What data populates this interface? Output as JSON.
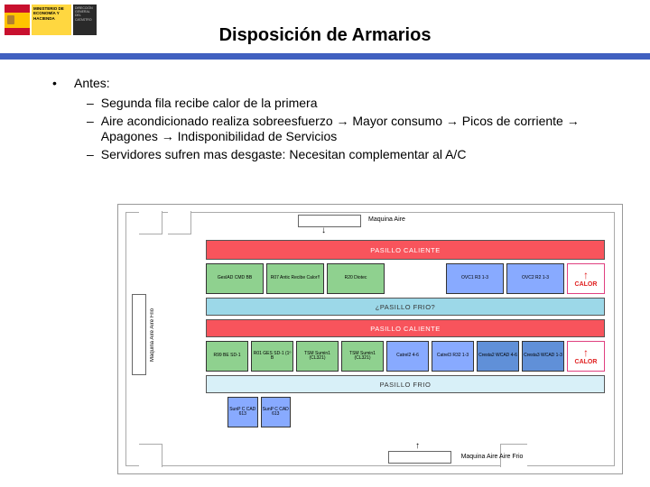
{
  "colors": {
    "flag_red": "#c8102e",
    "flag_yellow": "#ffc400",
    "crest": "#b08030",
    "min_bg": "#ffd740",
    "dark_bg": "#2a2a2a",
    "title_rule": "#4060c0",
    "hot": "#f8545c",
    "hot_text": "#ffffff",
    "cold": "#9cd8e8",
    "frio": "#d8f0f8",
    "rack_green": "#8fd18f",
    "rack_blue": "#88aaff",
    "rack_blue2": "#6090d8",
    "calor_border": "#e04080",
    "calor_red": "#e02020",
    "room_border": "#aaaaaa"
  },
  "header": {
    "min_text": "MINISTERIO DE ECONOMÍA Y HACIENDA",
    "dark_text": "DIRECCIÓN GENERAL DEL CATASTRO"
  },
  "title": "Disposición de Armarios",
  "bullet": {
    "marker": "•",
    "label": "Antes:"
  },
  "subs": {
    "m": "–",
    "s1": "Segunda fila recibe calor de la primera",
    "s2": "Aire acondicionado realiza sobreesfuerzo → Mayor consumo → Picos de corriente → Apagones → Indisponibilidad de Servicios",
    "s3": "Servidores sufren mas desgaste: Necesitan complementar al A/C"
  },
  "diagram": {
    "top_ac": "Maquina Aire",
    "pasillo_caliente": "PASILLO CALIENTE",
    "pasillo_frio_q": "¿PASILLO FRIO?",
    "pasillo_frio": "PASILLO FRIO",
    "calor": "CALOR",
    "calor_arrow": "↑",
    "bottom_ac": "Maquina Aire Aire Frio",
    "left_ac": "Maquina Aire Aire Frio",
    "flow_down": "↓",
    "flow_up": "↑",
    "racks_row1": [
      {
        "t": "GesIAD\nCMD\nBB",
        "c": "rack_green"
      },
      {
        "t": "R07\nAntic\nRecibe\nCalor!!",
        "c": "rack_green"
      },
      {
        "t": "R20\nDiotec",
        "c": "rack_green"
      },
      {
        "t": "",
        "c": null
      },
      {
        "t": "OVC1\nR3\n1-3",
        "c": "rack_blue"
      },
      {
        "t": "OVC2\nR2\n1-3",
        "c": "rack_blue"
      }
    ],
    "racks_row2": [
      {
        "t": "R99\nBE\nSD-1",
        "c": "rack_green"
      },
      {
        "t": "R01\nGES\nSD-1\n(1º B",
        "c": "rack_green"
      },
      {
        "t": "TSM\nSumin1\n(CL321)",
        "c": "rack_green"
      },
      {
        "t": "TSM\nSumin1\n(CL321)",
        "c": "rack_green"
      },
      {
        "t": "Catrel2\n4-6",
        "c": "rack_blue"
      },
      {
        "t": "Catrel3\nR32\n1-3",
        "c": "rack_blue"
      },
      {
        "t": "Cresta2\nWCAD\n4-6",
        "c": "rack_blue2"
      },
      {
        "t": "Cresta3\nWCAD\n1-3",
        "c": "rack_blue2"
      }
    ],
    "racks_bottom": [
      {
        "t": "SunP\nC\nCAD\n613",
        "c": "rack_blue"
      },
      {
        "t": "SunP\nC\nCAD\n613",
        "c": "rack_blue"
      }
    ]
  }
}
